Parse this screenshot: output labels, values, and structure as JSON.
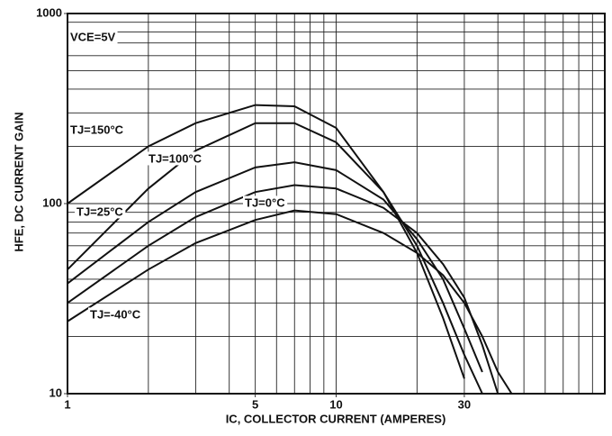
{
  "chart_data": {
    "type": "line",
    "annotation": "VCE=5V",
    "xlabel": "IC, COLLECTOR CURRENT (AMPERES)",
    "ylabel": "HFE, DC CURRENT GAIN",
    "log_x": true,
    "log_y": true,
    "grid": true,
    "color": "#111111",
    "xlim": [
      1,
      100
    ],
    "ylim": [
      10,
      1000
    ],
    "xticks": [
      1,
      5,
      10,
      30
    ],
    "yticks": [
      10,
      100,
      1000
    ],
    "xgrid": [
      2,
      3,
      4,
      5,
      6,
      7,
      8,
      9,
      10,
      20,
      30,
      40,
      50,
      60,
      70,
      80,
      90
    ],
    "ygrid": [
      20,
      30,
      40,
      50,
      60,
      70,
      80,
      90,
      100,
      200,
      300,
      400,
      500,
      600,
      700,
      800,
      900
    ],
    "x": [
      1,
      2,
      3,
      5,
      7,
      10,
      15,
      20,
      25,
      30,
      35,
      40,
      45
    ],
    "series": [
      {
        "name": "TJ=150°C",
        "values": [
          100,
          200,
          265,
          330,
          325,
          250,
          115,
          55,
          25,
          12,
          null,
          null,
          null
        ]
      },
      {
        "name": "TJ=100°C",
        "values": [
          45,
          120,
          190,
          265,
          265,
          210,
          115,
          60,
          30,
          16,
          10,
          null,
          null
        ]
      },
      {
        "name": "TJ=25°C",
        "values": [
          38,
          80,
          115,
          155,
          165,
          150,
          105,
          65,
          40,
          22,
          13,
          null,
          null
        ]
      },
      {
        "name": "TJ=0°C",
        "values": [
          30,
          60,
          85,
          115,
          125,
          120,
          95,
          70,
          48,
          32,
          18,
          10,
          null
        ]
      },
      {
        "name": "TJ=-40°C",
        "values": [
          24,
          45,
          62,
          82,
          92,
          88,
          70,
          55,
          42,
          30,
          20,
          13,
          10
        ]
      }
    ]
  }
}
